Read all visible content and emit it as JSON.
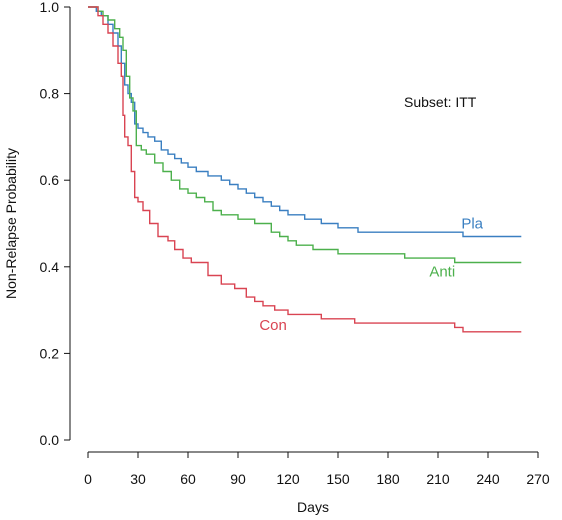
{
  "chart_data": {
    "type": "line",
    "title": "",
    "annotation": "Subset: ITT",
    "xlabel": "Days",
    "ylabel": "Non-Relapse Probability",
    "xlim": [
      0,
      270
    ],
    "ylim": [
      0,
      1
    ],
    "xticks": [
      "0",
      "30",
      "60",
      "90",
      "120",
      "150",
      "180",
      "210",
      "240",
      "270"
    ],
    "yticks": [
      "0.0",
      "0.2",
      "0.4",
      "0.6",
      "0.8",
      "1.0"
    ],
    "grid": false,
    "step": true,
    "series": [
      {
        "name": "Pla",
        "color": "#3a7fc1",
        "points": [
          [
            0,
            1.0
          ],
          [
            2,
            1.0
          ],
          [
            5,
            0.99
          ],
          [
            8,
            0.98
          ],
          [
            12,
            0.96
          ],
          [
            15,
            0.94
          ],
          [
            18,
            0.91
          ],
          [
            20,
            0.87
          ],
          [
            22,
            0.82
          ],
          [
            24,
            0.8
          ],
          [
            26,
            0.78
          ],
          [
            28,
            0.73
          ],
          [
            30,
            0.72
          ],
          [
            33,
            0.71
          ],
          [
            36,
            0.7
          ],
          [
            40,
            0.69
          ],
          [
            44,
            0.67
          ],
          [
            48,
            0.66
          ],
          [
            52,
            0.65
          ],
          [
            56,
            0.64
          ],
          [
            60,
            0.63
          ],
          [
            65,
            0.62
          ],
          [
            72,
            0.61
          ],
          [
            80,
            0.6
          ],
          [
            85,
            0.59
          ],
          [
            90,
            0.58
          ],
          [
            95,
            0.57
          ],
          [
            100,
            0.56
          ],
          [
            105,
            0.55
          ],
          [
            110,
            0.54
          ],
          [
            115,
            0.53
          ],
          [
            120,
            0.52
          ],
          [
            130,
            0.51
          ],
          [
            140,
            0.5
          ],
          [
            150,
            0.49
          ],
          [
            162,
            0.48
          ],
          [
            190,
            0.48
          ],
          [
            215,
            0.48
          ],
          [
            220,
            0.48
          ],
          [
            225,
            0.47
          ],
          [
            260,
            0.47
          ]
        ]
      },
      {
        "name": "Anti",
        "color": "#4cb04c",
        "points": [
          [
            0,
            1.0
          ],
          [
            3,
            1.0
          ],
          [
            6,
            0.99
          ],
          [
            9,
            0.98
          ],
          [
            12,
            0.97
          ],
          [
            16,
            0.95
          ],
          [
            19,
            0.93
          ],
          [
            21,
            0.9
          ],
          [
            23,
            0.84
          ],
          [
            25,
            0.79
          ],
          [
            27,
            0.76
          ],
          [
            29,
            0.68
          ],
          [
            32,
            0.67
          ],
          [
            35,
            0.66
          ],
          [
            40,
            0.64
          ],
          [
            45,
            0.62
          ],
          [
            50,
            0.6
          ],
          [
            55,
            0.58
          ],
          [
            60,
            0.57
          ],
          [
            65,
            0.56
          ],
          [
            70,
            0.55
          ],
          [
            75,
            0.53
          ],
          [
            80,
            0.52
          ],
          [
            90,
            0.51
          ],
          [
            100,
            0.5
          ],
          [
            110,
            0.48
          ],
          [
            115,
            0.47
          ],
          [
            120,
            0.46
          ],
          [
            125,
            0.45
          ],
          [
            135,
            0.44
          ],
          [
            145,
            0.44
          ],
          [
            150,
            0.43
          ],
          [
            160,
            0.43
          ],
          [
            190,
            0.42
          ],
          [
            210,
            0.42
          ],
          [
            220,
            0.41
          ],
          [
            260,
            0.41
          ]
        ]
      },
      {
        "name": "Con",
        "color": "#d94452",
        "points": [
          [
            0,
            1.0
          ],
          [
            3,
            1.0
          ],
          [
            6,
            0.98
          ],
          [
            9,
            0.96
          ],
          [
            12,
            0.94
          ],
          [
            15,
            0.91
          ],
          [
            18,
            0.87
          ],
          [
            20,
            0.84
          ],
          [
            21,
            0.75
          ],
          [
            22,
            0.7
          ],
          [
            24,
            0.68
          ],
          [
            26,
            0.62
          ],
          [
            28,
            0.56
          ],
          [
            30,
            0.55
          ],
          [
            33,
            0.53
          ],
          [
            37,
            0.5
          ],
          [
            42,
            0.47
          ],
          [
            48,
            0.46
          ],
          [
            52,
            0.44
          ],
          [
            57,
            0.42
          ],
          [
            62,
            0.41
          ],
          [
            72,
            0.38
          ],
          [
            80,
            0.36
          ],
          [
            88,
            0.35
          ],
          [
            95,
            0.33
          ],
          [
            100,
            0.32
          ],
          [
            105,
            0.31
          ],
          [
            112,
            0.3
          ],
          [
            120,
            0.29
          ],
          [
            130,
            0.29
          ],
          [
            140,
            0.28
          ],
          [
            150,
            0.28
          ],
          [
            160,
            0.27
          ],
          [
            190,
            0.27
          ],
          [
            215,
            0.27
          ],
          [
            220,
            0.26
          ],
          [
            225,
            0.25
          ],
          [
            260,
            0.25
          ]
        ]
      }
    ]
  }
}
